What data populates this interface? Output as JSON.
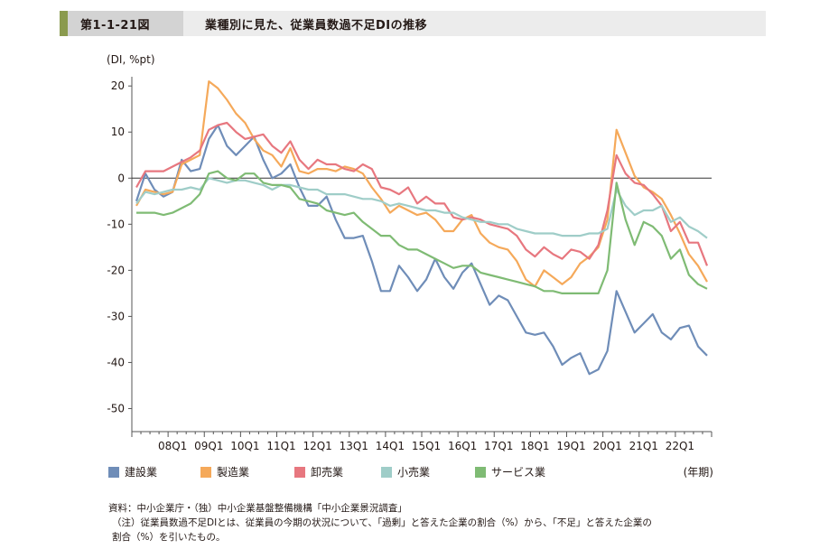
{
  "header": {
    "figure_number": "第1-1-21図",
    "title": "業種別に見た、従業員数過不足DIの推移"
  },
  "notes": {
    "source": "資料：中小企業庁・（独）中小企業基盤整備機構「中小企業景況調査」",
    "note_line1": "（注）従業員数過不足DIとは、従業員の今期の状況について、「過剰」と答えた企業の割合（%）から、「不足」と答えた企業の",
    "note_line2": "割合（%）を引いたもの。"
  },
  "chart_data": {
    "type": "line",
    "title": "",
    "ylabel": "(DI, %pt)",
    "xlabel": "(年期)",
    "ylim": [
      -55,
      22
    ],
    "yticks": [
      20,
      10,
      0,
      -10,
      -20,
      -30,
      -40,
      -50
    ],
    "x_tick_labels": [
      "08Q1",
      "09Q1",
      "10Q1",
      "11Q1",
      "12Q1",
      "13Q1",
      "14Q1",
      "15Q1",
      "16Q1",
      "17Q1",
      "18Q1",
      "19Q1",
      "20Q1",
      "21Q1",
      "22Q1"
    ],
    "x_start": "2007Q1",
    "x_end": "2022Q4",
    "legend_position": "bottom",
    "grid": false,
    "zero_line": true,
    "series": [
      {
        "name": "建設業",
        "color": "#6f8db8",
        "values": [
          -5.0,
          1.0,
          -2.5,
          -4.0,
          -3.0,
          4.0,
          1.5,
          2.0,
          8.5,
          11.5,
          7.0,
          5.0,
          7.0,
          9.0,
          4.0,
          0.0,
          1.0,
          3.0,
          -2.0,
          -6.0,
          -6.0,
          -4.0,
          -9.0,
          -13.0,
          -13.0,
          -12.5,
          -18.0,
          -24.5,
          -24.5,
          -19.0,
          -21.5,
          -24.5,
          -22.0,
          -17.5,
          -21.5,
          -24.0,
          -20.5,
          -18.5,
          -23.0,
          -27.5,
          -25.5,
          -26.5,
          -30.0,
          -33.5,
          -34.0,
          -33.5,
          -36.5,
          -40.5,
          -39.0,
          -38.0,
          -42.5,
          -41.5,
          -37.5,
          -24.5,
          -29.0,
          -33.5,
          -31.5,
          -29.5,
          -33.5,
          -35.0,
          -32.5,
          -32.0,
          -36.5,
          -38.5
        ]
      },
      {
        "name": "製造業",
        "color": "#f5a95a",
        "values": [
          -6.0,
          -2.5,
          -3.0,
          -3.5,
          -3.0,
          3.0,
          4.0,
          5.0,
          21.0,
          19.5,
          17.0,
          14.0,
          12.0,
          8.5,
          6.0,
          5.0,
          2.5,
          6.5,
          1.5,
          1.0,
          2.0,
          2.0,
          1.5,
          2.5,
          2.0,
          1.0,
          -2.0,
          -4.5,
          -7.5,
          -6.0,
          -7.0,
          -8.0,
          -7.5,
          -9.0,
          -11.5,
          -11.5,
          -9.0,
          -8.0,
          -12.0,
          -14.0,
          -15.0,
          -15.5,
          -18.0,
          -22.0,
          -23.5,
          -20.0,
          -21.5,
          -23.0,
          -21.5,
          -18.5,
          -17.0,
          -15.0,
          -9.0,
          10.5,
          5.5,
          0.5,
          -2.0,
          -3.0,
          -4.5,
          -8.0,
          -12.0,
          -16.5,
          -19.0,
          -22.5
        ]
      },
      {
        "name": "卸売業",
        "color": "#e7777f",
        "values": [
          -2.0,
          1.5,
          1.5,
          1.5,
          2.5,
          3.5,
          4.5,
          6.0,
          10.5,
          11.5,
          12.0,
          10.0,
          8.5,
          9.0,
          9.5,
          7.0,
          5.5,
          8.0,
          4.0,
          2.0,
          4.0,
          3.0,
          3.0,
          2.0,
          1.5,
          3.0,
          2.0,
          -2.0,
          -2.5,
          -3.5,
          -2.0,
          -5.5,
          -4.0,
          -5.5,
          -5.5,
          -8.5,
          -9.0,
          -8.5,
          -9.0,
          -10.0,
          -10.5,
          -11.0,
          -12.5,
          -15.5,
          -17.0,
          -15.0,
          -16.5,
          -17.5,
          -15.5,
          -16.0,
          -17.5,
          -14.5,
          -7.0,
          5.0,
          1.0,
          -1.0,
          -1.5,
          -3.5,
          -6.0,
          -11.5,
          -9.5,
          -14.0,
          -14.0,
          -19.0
        ]
      },
      {
        "name": "小売業",
        "color": "#9fcdc8",
        "values": [
          -5.5,
          -3.0,
          -3.5,
          -3.0,
          -2.5,
          -2.5,
          -2.0,
          -2.5,
          0.0,
          -0.5,
          -1.0,
          -0.5,
          -0.5,
          -1.0,
          -1.5,
          -2.5,
          -1.5,
          -1.5,
          -2.0,
          -2.5,
          -2.5,
          -3.5,
          -3.5,
          -3.5,
          -4.0,
          -4.5,
          -4.5,
          -5.0,
          -6.0,
          -5.5,
          -6.0,
          -6.5,
          -7.0,
          -7.0,
          -7.5,
          -7.5,
          -8.5,
          -9.0,
          -9.5,
          -9.5,
          -10.0,
          -10.0,
          -11.0,
          -11.5,
          -12.0,
          -12.0,
          -12.0,
          -12.5,
          -12.5,
          -12.5,
          -12.0,
          -12.0,
          -11.0,
          -2.5,
          -6.0,
          -8.0,
          -7.0,
          -7.0,
          -6.0,
          -9.5,
          -8.5,
          -10.5,
          -11.5,
          -13.0
        ]
      },
      {
        "name": "サービス業",
        "color": "#7fbb74",
        "values": [
          -7.5,
          -7.5,
          -7.5,
          -8.0,
          -7.5,
          -6.5,
          -5.5,
          -3.5,
          1.0,
          1.5,
          0.0,
          -0.5,
          1.0,
          1.0,
          -1.0,
          -1.5,
          -1.5,
          -2.0,
          -4.5,
          -5.0,
          -5.5,
          -7.0,
          -7.5,
          -8.0,
          -7.5,
          -9.5,
          -11.0,
          -12.5,
          -12.5,
          -14.5,
          -15.5,
          -15.5,
          -16.5,
          -17.5,
          -18.5,
          -19.5,
          -19.0,
          -19.0,
          -20.5,
          -21.0,
          -21.5,
          -22.0,
          -22.5,
          -23.0,
          -23.5,
          -24.5,
          -24.5,
          -25.0,
          -25.0,
          -25.0,
          -25.0,
          -25.0,
          -20.0,
          -1.0,
          -9.0,
          -14.5,
          -9.5,
          -10.5,
          -12.5,
          -17.5,
          -15.5,
          -21.0,
          -23.0,
          -24.0
        ]
      }
    ]
  }
}
